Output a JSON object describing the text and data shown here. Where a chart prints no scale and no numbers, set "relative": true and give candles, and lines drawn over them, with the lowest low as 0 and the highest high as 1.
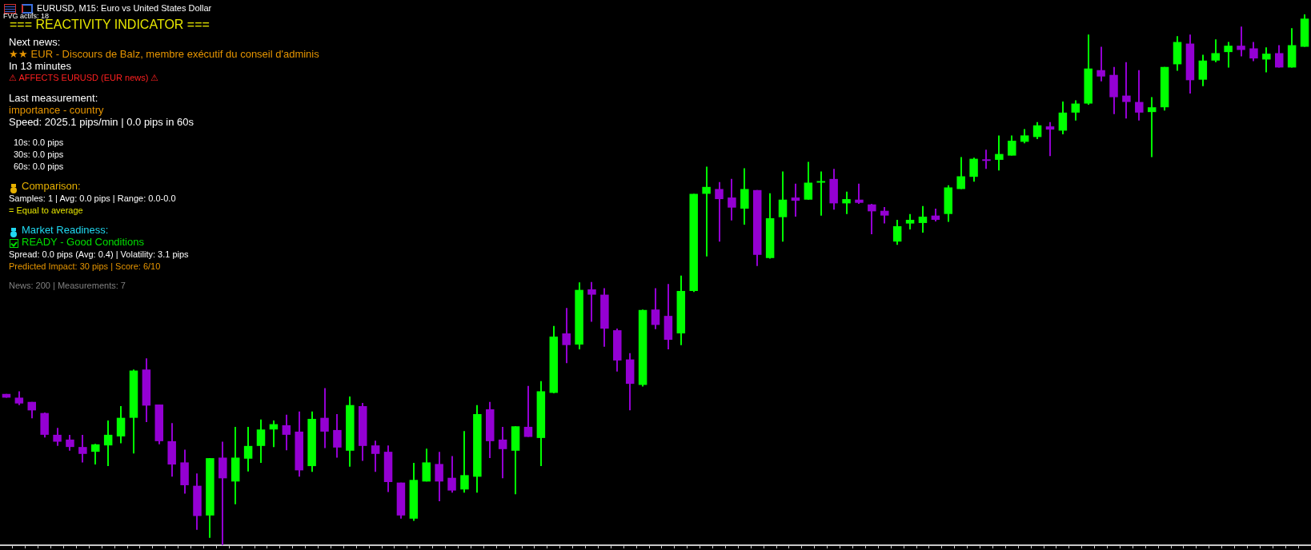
{
  "chart_data": {
    "type": "candlestick",
    "relative": true,
    "tick_labels": false,
    "title": "=== REACTIVITY INDICATOR ===",
    "subtitle": "EURUSD, M15:  Euro vs United States Dollar",
    "annotations": [
      "FVG actifs: 18",
      "Next news:",
      "★★ EUR - Discours de Balz, membre exécutif du conseil d'adminis",
      "In 13 minutes",
      "⚠ AFFECTS EURUSD (EUR news) ⚠",
      "Last measurement:",
      " importance - country",
      "Speed: 2025.1 pips/min | 0.0 pips in 60s",
      "10s: 0.0 pips",
      "30s: 0.0 pips",
      "60s: 0.0 pips",
      "Comparison:",
      "Samples: 1 | Avg: 0.0 pips | Range: 0.0-0.0",
      "= Equal to average",
      "Market Readiness:",
      "READY - Good Conditions",
      "Spread: 0.0 pips (Avg: 0.4) | Volatility: 3.1 pips",
      "Predicted Impact: 30 pips | Score: 6/10",
      "News: 200 | Measurements: 7"
    ],
    "categories": [
      null,
      null,
      null,
      null,
      null,
      null,
      null,
      null,
      null,
      null,
      null,
      null,
      null,
      null,
      null,
      null,
      null,
      null,
      null,
      null,
      null,
      null,
      null,
      null,
      null,
      null,
      null,
      null,
      null,
      null,
      null,
      null,
      null,
      null,
      null,
      null,
      null,
      null,
      null,
      null,
      null,
      null,
      null,
      null,
      null,
      null,
      null,
      null,
      null,
      null,
      null,
      null,
      null,
      null,
      null,
      null,
      null,
      null,
      null,
      null,
      null,
      null,
      null,
      null,
      null,
      null,
      null,
      null,
      null,
      null,
      null,
      null,
      null,
      null,
      null,
      null,
      null,
      null,
      null,
      null,
      null,
      null,
      null,
      null,
      null,
      null,
      null,
      null,
      null,
      null,
      null,
      null,
      null,
      null,
      null,
      null,
      null,
      null,
      null,
      null,
      null,
      null,
      null
    ],
    "ohlc": [
      [
        0.285,
        0.285,
        0.278,
        0.278
      ],
      [
        0.278,
        0.29,
        0.264,
        0.267
      ],
      [
        0.27,
        0.27,
        0.239,
        0.254
      ],
      [
        0.249,
        0.25,
        0.203,
        0.208
      ],
      [
        0.208,
        0.221,
        0.187,
        0.195
      ],
      [
        0.199,
        0.208,
        0.178,
        0.185
      ],
      [
        0.185,
        0.208,
        0.156,
        0.172
      ],
      [
        0.176,
        0.191,
        0.152,
        0.19
      ],
      [
        0.188,
        0.235,
        0.149,
        0.208
      ],
      [
        0.205,
        0.262,
        0.192,
        0.24
      ],
      [
        0.24,
        0.331,
        0.173,
        0.329
      ],
      [
        0.331,
        0.352,
        0.232,
        0.263
      ],
      [
        0.265,
        0.265,
        0.19,
        0.196
      ],
      [
        0.196,
        0.23,
        0.129,
        0.152
      ],
      [
        0.156,
        0.18,
        0.097,
        0.113
      ],
      [
        0.112,
        0.135,
        0.029,
        0.055
      ],
      [
        0.056,
        0.164,
        0.014,
        0.164
      ],
      [
        0.165,
        0.195,
        0,
        0.126
      ],
      [
        0.12,
        0.223,
        0.077,
        0.165
      ],
      [
        0.163,
        0.223,
        0.139,
        0.187
      ],
      [
        0.187,
        0.237,
        0.155,
        0.218
      ],
      [
        0.218,
        0.235,
        0.185,
        0.228
      ],
      [
        0.226,
        0.246,
        0.179,
        0.208
      ],
      [
        0.214,
        0.252,
        0.129,
        0.141
      ],
      [
        0.149,
        0.252,
        0.138,
        0.238
      ],
      [
        0.24,
        0.296,
        0.183,
        0.214
      ],
      [
        0.217,
        0.247,
        0.165,
        0.184
      ],
      [
        0.178,
        0.28,
        0.148,
        0.264
      ],
      [
        0.262,
        0.268,
        0.159,
        0.187
      ],
      [
        0.188,
        0.197,
        0.138,
        0.172
      ],
      [
        0.176,
        0.188,
        0.1,
        0.119
      ],
      [
        0.118,
        0.118,
        0.05,
        0.056
      ],
      [
        0.05,
        0.155,
        0.046,
        0.123
      ],
      [
        0.12,
        0.182,
        0.12,
        0.156
      ],
      [
        0.153,
        0.176,
        0.083,
        0.12
      ],
      [
        0.127,
        0.168,
        0.099,
        0.103
      ],
      [
        0.105,
        0.215,
        0.099,
        0.132
      ],
      [
        0.129,
        0.264,
        0.099,
        0.247
      ],
      [
        0.256,
        0.27,
        0.164,
        0.196
      ],
      [
        0.199,
        0.223,
        0.126,
        0.181
      ],
      [
        0.178,
        0.224,
        0.096,
        0.224
      ],
      [
        0.223,
        0.3,
        0.204,
        0.204
      ],
      [
        0.202,
        0.309,
        0.149,
        0.29
      ],
      [
        0.287,
        0.413,
        0.286,
        0.393
      ],
      [
        0.399,
        0.447,
        0.343,
        0.377
      ],
      [
        0.378,
        0.495,
        0.369,
        0.481
      ],
      [
        0.482,
        0.496,
        0.421,
        0.472
      ],
      [
        0.472,
        0.484,
        0.374,
        0.408
      ],
      [
        0.405,
        0.408,
        0.327,
        0.348
      ],
      [
        0.35,
        0.362,
        0.254,
        0.304
      ],
      [
        0.302,
        0.444,
        0.299,
        0.443
      ],
      [
        0.444,
        0.484,
        0.407,
        0.415
      ],
      [
        0.432,
        0.492,
        0.369,
        0.387
      ],
      [
        0.399,
        0.508,
        0.377,
        0.479
      ],
      [
        0.479,
        0.662,
        0.477,
        0.662
      ],
      [
        0.662,
        0.713,
        0.544,
        0.675
      ],
      [
        0.671,
        0.684,
        0.572,
        0.652
      ],
      [
        0.655,
        0.69,
        0.612,
        0.636
      ],
      [
        0.634,
        0.71,
        0.604,
        0.671
      ],
      [
        0.669,
        0.669,
        0.526,
        0.547
      ],
      [
        0.541,
        0.663,
        0.54,
        0.616
      ],
      [
        0.618,
        0.704,
        0.572,
        0.651
      ],
      [
        0.655,
        0.681,
        0.619,
        0.649
      ],
      [
        0.651,
        0.722,
        0.651,
        0.683
      ],
      [
        0.683,
        0.704,
        0.621,
        0.686
      ],
      [
        0.69,
        0.709,
        0.632,
        0.644
      ],
      [
        0.644,
        0.666,
        0.624,
        0.652
      ],
      [
        0.651,
        0.681,
        0.643,
        0.645
      ],
      [
        0.642,
        0.643,
        0.586,
        0.629
      ],
      [
        0.63,
        0.637,
        0.606,
        0.621
      ],
      [
        0.572,
        0.613,
        0.566,
        0.601
      ],
      [
        0.606,
        0.624,
        0.595,
        0.613
      ],
      [
        0.607,
        0.639,
        0.589,
        0.619
      ],
      [
        0.621,
        0.634,
        0.61,
        0.613
      ],
      [
        0.624,
        0.678,
        0.609,
        0.674
      ],
      [
        0.671,
        0.731,
        0.671,
        0.695
      ],
      [
        0.694,
        0.73,
        0.685,
        0.728
      ],
      [
        0.727,
        0.745,
        0.709,
        0.724
      ],
      [
        0.726,
        0.772,
        0.706,
        0.737
      ],
      [
        0.734,
        0.772,
        0.734,
        0.762
      ],
      [
        0.76,
        0.784,
        0.757,
        0.772
      ],
      [
        0.769,
        0.797,
        0.765,
        0.791
      ],
      [
        0.789,
        0.797,
        0.733,
        0.783
      ],
      [
        0.781,
        0.836,
        0.774,
        0.815
      ],
      [
        0.815,
        0.838,
        0.8,
        0.832
      ],
      [
        0.832,
        0.962,
        0.83,
        0.898
      ],
      [
        0.895,
        0.939,
        0.874,
        0.883
      ],
      [
        0.886,
        0.901,
        0.812,
        0.844
      ],
      [
        0.847,
        0.91,
        0.804,
        0.835
      ],
      [
        0.835,
        0.895,
        0.8,
        0.815
      ],
      [
        0.816,
        0.844,
        0.731,
        0.825
      ],
      [
        0.825,
        0.901,
        0.819,
        0.901
      ],
      [
        0.906,
        0.959,
        0.894,
        0.948
      ],
      [
        0.945,
        0.962,
        0.851,
        0.876
      ],
      [
        0.877,
        0.924,
        0.865,
        0.913
      ],
      [
        0.913,
        0.953,
        0.91,
        0.927
      ],
      [
        0.929,
        0.948,
        0.9,
        0.941
      ],
      [
        0.941,
        0.977,
        0.921,
        0.933
      ],
      [
        0.936,
        0.948,
        0.912,
        0.917
      ],
      [
        0.915,
        0.938,
        0.891,
        0.926
      ],
      [
        0.927,
        0.942,
        0.9,
        0.9
      ],
      [
        0.9,
        0.974,
        0.9,
        0.942
      ],
      [
        0.939,
        1,
        0.939,
        0.992
      ]
    ],
    "colors": [
      "#9400d3",
      "#9400d3",
      "#9400d3",
      "#9400d3",
      "#9400d3",
      "#9400d3",
      "#9400d3",
      "#00ff00",
      "#00ff00",
      "#00ff00",
      "#00ff00",
      "#9400d3",
      "#9400d3",
      "#9400d3",
      "#9400d3",
      "#9400d3",
      "#00ff00",
      "#9400d3",
      "#00ff00",
      "#00ff00",
      "#00ff00",
      "#00ff00",
      "#9400d3",
      "#9400d3",
      "#00ff00",
      "#9400d3",
      "#9400d3",
      "#00ff00",
      "#9400d3",
      "#9400d3",
      "#9400d3",
      "#9400d3",
      "#00ff00",
      "#00ff00",
      "#9400d3",
      "#9400d3",
      "#00ff00",
      "#00ff00",
      "#9400d3",
      "#9400d3",
      "#00ff00",
      "#9400d3",
      "#00ff00",
      "#00ff00",
      "#9400d3",
      "#00ff00",
      "#9400d3",
      "#9400d3",
      "#9400d3",
      "#9400d3",
      "#00ff00",
      "#9400d3",
      "#9400d3",
      "#00ff00",
      "#00ff00",
      "#00ff00",
      "#9400d3",
      "#9400d3",
      "#00ff00",
      "#9400d3",
      "#00ff00",
      "#00ff00",
      "#9400d3",
      "#00ff00",
      "#00ff00",
      "#9400d3",
      "#00ff00",
      "#9400d3",
      "#9400d3",
      "#9400d3",
      "#00ff00",
      "#00ff00",
      "#00ff00",
      "#9400d3",
      "#00ff00",
      "#00ff00",
      "#00ff00",
      "#9400d3",
      "#00ff00",
      "#00ff00",
      "#00ff00",
      "#00ff00",
      "#9400d3",
      "#00ff00",
      "#00ff00",
      "#00ff00",
      "#9400d3",
      "#9400d3",
      "#9400d3",
      "#9400d3",
      "#00ff00",
      "#00ff00",
      "#00ff00",
      "#9400d3",
      "#00ff00",
      "#00ff00",
      "#00ff00",
      "#9400d3",
      "#9400d3",
      "#00ff00",
      "#9400d3",
      "#00ff00",
      "#00ff00"
    ]
  }
}
